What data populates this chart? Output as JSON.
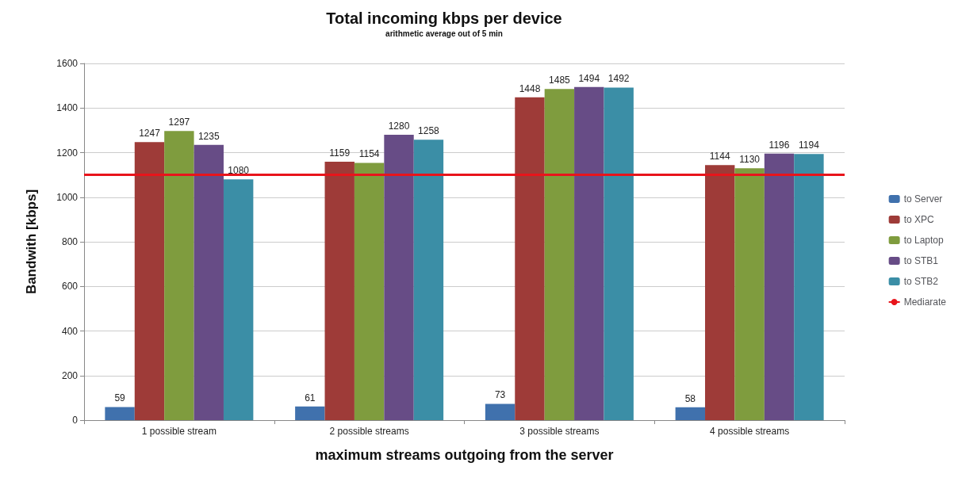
{
  "chart_data": {
    "type": "bar",
    "title": "Total incoming kbps per device",
    "subtitle": "arithmetic average out of 5 min",
    "xlabel": "maximum streams outgoing from the server",
    "ylabel": "Bandwith [kbps]",
    "categories": [
      "1 possible stream",
      "2 possible streams",
      "3 possible streams",
      "4 possible streams"
    ],
    "series": [
      {
        "name": "to Server",
        "color": "#4071ad",
        "values": [
          59,
          61,
          73,
          58
        ]
      },
      {
        "name": "to XPC",
        "color": "#9e3b38",
        "values": [
          1247,
          1159,
          1448,
          1144
        ]
      },
      {
        "name": "to Laptop",
        "color": "#7f9c3e",
        "values": [
          1297,
          1154,
          1485,
          1130
        ]
      },
      {
        "name": "to STB1",
        "color": "#674c86",
        "values": [
          1235,
          1280,
          1494,
          1196
        ]
      },
      {
        "name": "to STB2",
        "color": "#3b8ea6",
        "values": [
          1080,
          1258,
          1492,
          1194
        ]
      }
    ],
    "ref_lines": [
      {
        "axis": "y",
        "value": 1100,
        "label": "Mediarate",
        "color": "#e8141b"
      }
    ],
    "ylim": [
      0,
      1600
    ],
    "yticks": [
      0,
      200,
      400,
      600,
      800,
      1000,
      1200,
      1400,
      1600
    ],
    "grid": "y",
    "legend": "right",
    "data_labels": true
  }
}
